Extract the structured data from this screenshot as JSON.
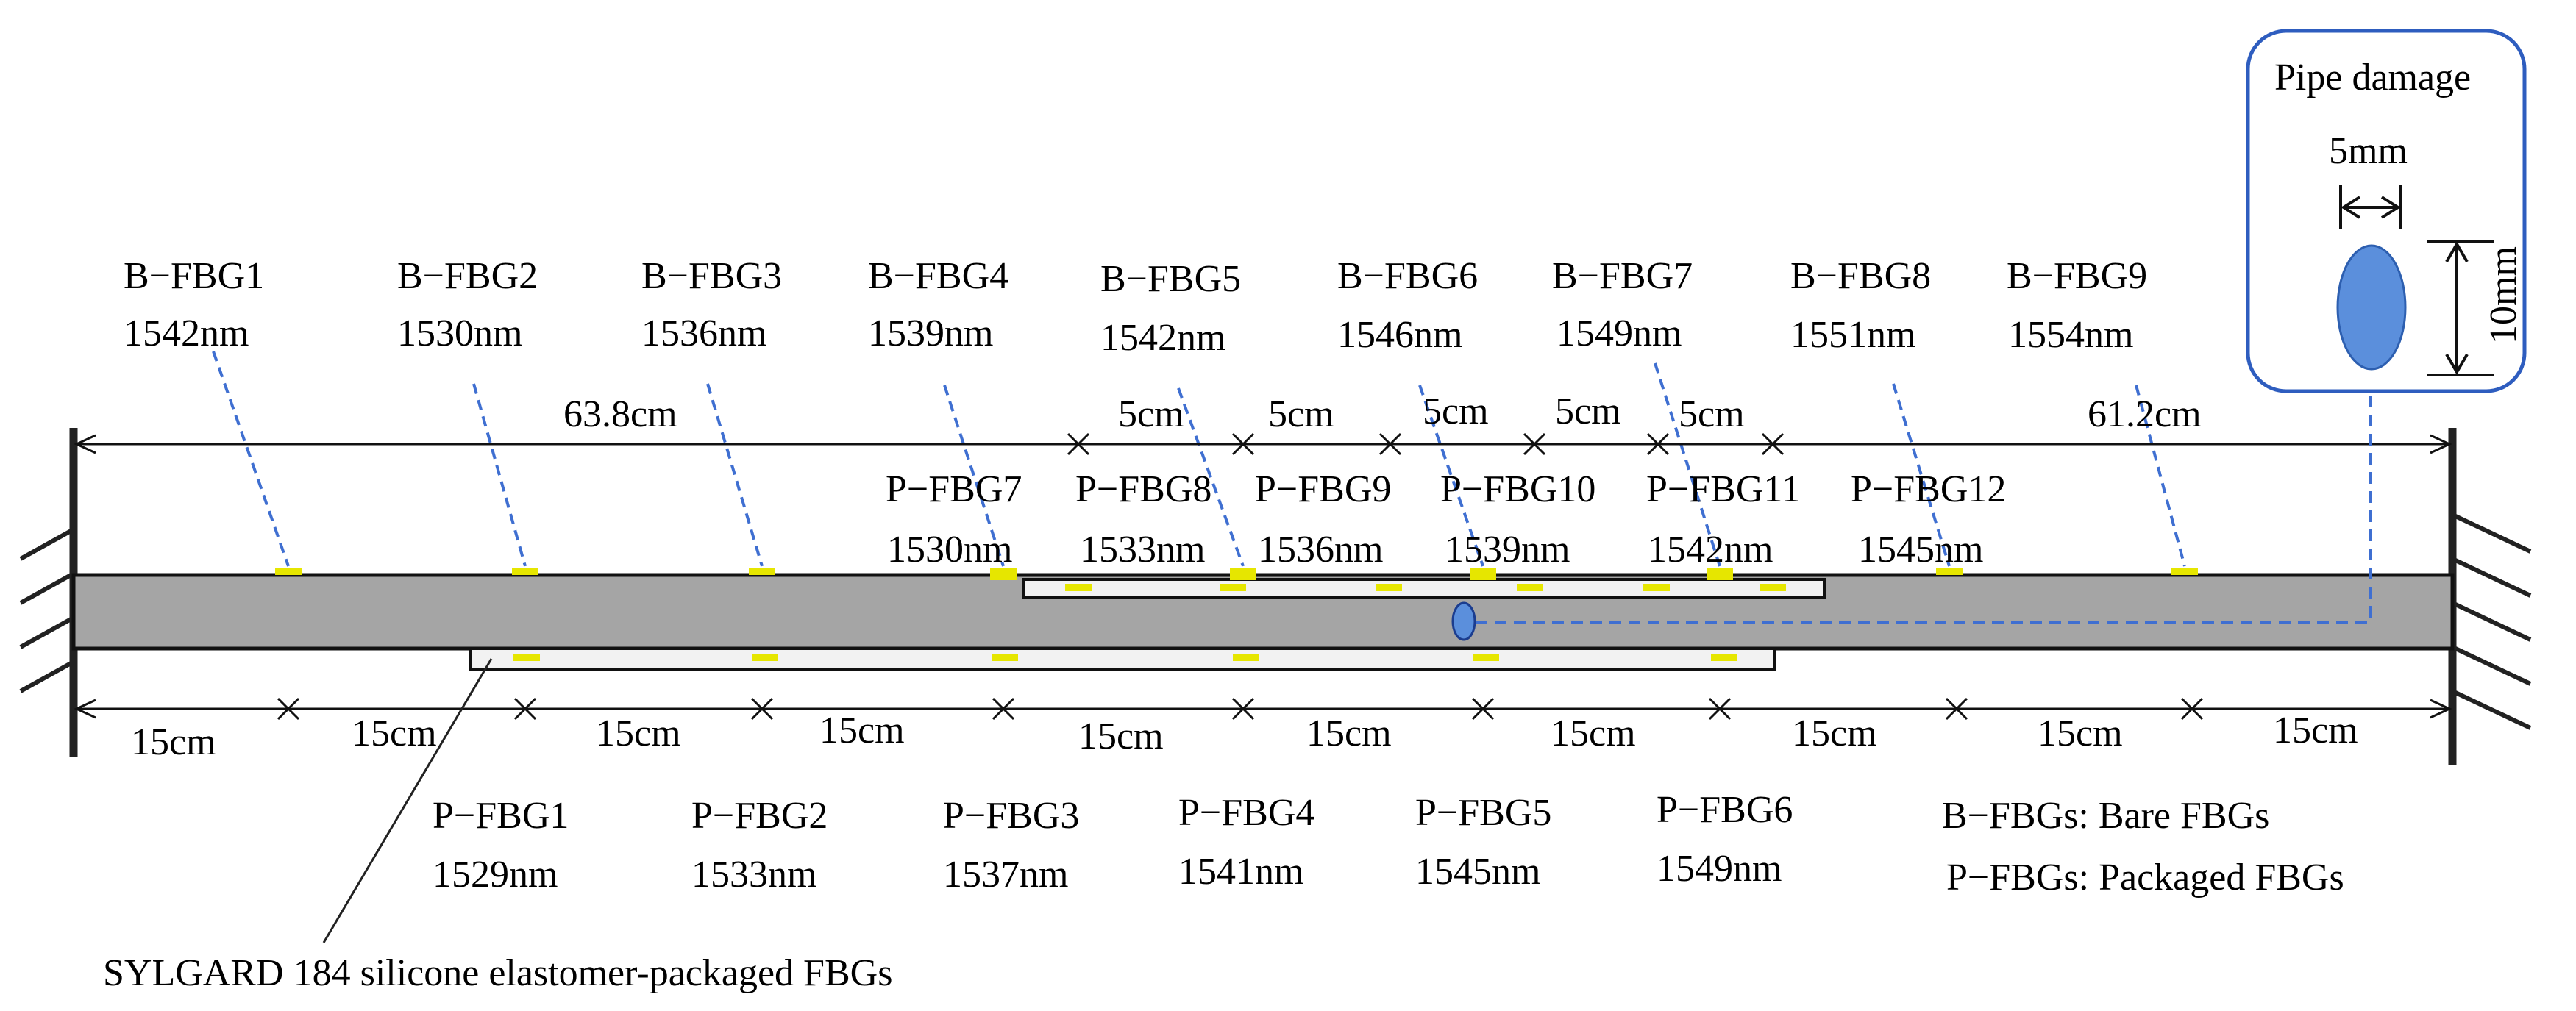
{
  "colors": {
    "pipe": "#a5a5a5",
    "sensor": "#e6e600",
    "link": "#3f6fd1",
    "damage": "#5b8fdc",
    "frame": "#2e5dbf"
  },
  "bare_fbgs": [
    {
      "name": "B−FBG1",
      "wavelength": "1542nm"
    },
    {
      "name": "B−FBG2",
      "wavelength": "1530nm"
    },
    {
      "name": "B−FBG3",
      "wavelength": "1536nm"
    },
    {
      "name": "B−FBG4",
      "wavelength": "1539nm"
    },
    {
      "name": "B−FBG5",
      "wavelength": "1542nm"
    },
    {
      "name": "B−FBG6",
      "wavelength": "1546nm"
    },
    {
      "name": "B−FBG7",
      "wavelength": "1549nm"
    },
    {
      "name": "B−FBG8",
      "wavelength": "1551nm"
    },
    {
      "name": "B−FBG9",
      "wavelength": "1554nm"
    }
  ],
  "packaged_top": [
    {
      "name": "P−FBG7",
      "wavelength": "1530nm"
    },
    {
      "name": "P−FBG8",
      "wavelength": "1533nm"
    },
    {
      "name": "P−FBG9",
      "wavelength": "1536nm"
    },
    {
      "name": "P−FBG10",
      "wavelength": "1539nm"
    },
    {
      "name": "P−FBG11",
      "wavelength": "1542nm"
    },
    {
      "name": "P−FBG12",
      "wavelength": "1545nm"
    }
  ],
  "packaged_bottom": [
    {
      "name": "P−FBG1",
      "wavelength": "1529nm"
    },
    {
      "name": "P−FBG2",
      "wavelength": "1533nm"
    },
    {
      "name": "P−FBG3",
      "wavelength": "1537nm"
    },
    {
      "name": "P−FBG4",
      "wavelength": "1541nm"
    },
    {
      "name": "P−FBG5",
      "wavelength": "1545nm"
    },
    {
      "name": "P−FBG6",
      "wavelength": "1549nm"
    }
  ],
  "top_dims": {
    "left": "63.8cm",
    "segments": [
      "5cm",
      "5cm",
      "5cm",
      "5cm",
      "5cm"
    ],
    "right": "61.2cm"
  },
  "bottom_dims": [
    "15cm",
    "15cm",
    "15cm",
    "15cm",
    "15cm",
    "15cm",
    "15cm",
    "15cm",
    "15cm",
    "15cm"
  ],
  "damage": {
    "title": "Pipe damage",
    "width": "5mm",
    "height": "10mm"
  },
  "package_label": "SYLGARD 184 silicone elastomer-packaged FBGs",
  "legend": {
    "bare": "B−FBGs: Bare FBGs",
    "packaged": "P−FBGs: Packaged FBGs"
  }
}
